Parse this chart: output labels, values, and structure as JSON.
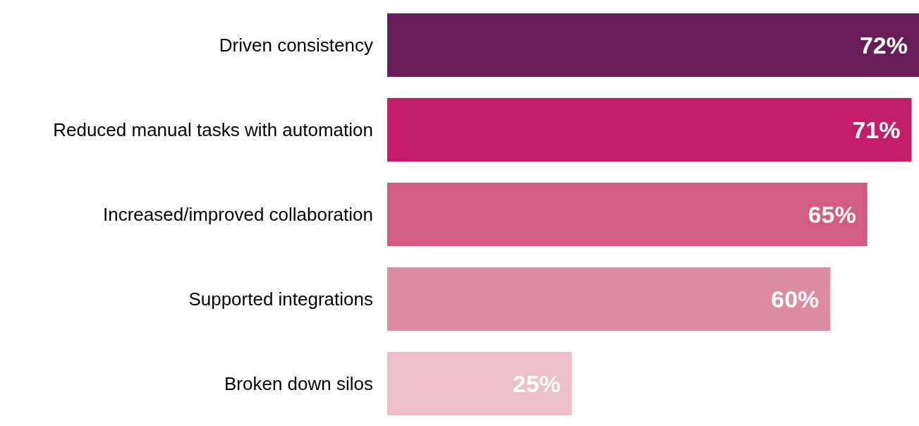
{
  "chart_data": {
    "type": "bar",
    "orientation": "horizontal",
    "categories": [
      "Driven consistency",
      "Reduced manual tasks with automation",
      "Increased/improved collaboration",
      "Supported integrations",
      "Broken down silos"
    ],
    "values": [
      72,
      71,
      65,
      60,
      25
    ],
    "value_labels": [
      "72%",
      "71%",
      "65%",
      "60%",
      "25%"
    ],
    "colors": [
      "#671d5a",
      "#c51e69",
      "#d25b83",
      "#dd8aa3",
      "#edbfcb"
    ]
  }
}
